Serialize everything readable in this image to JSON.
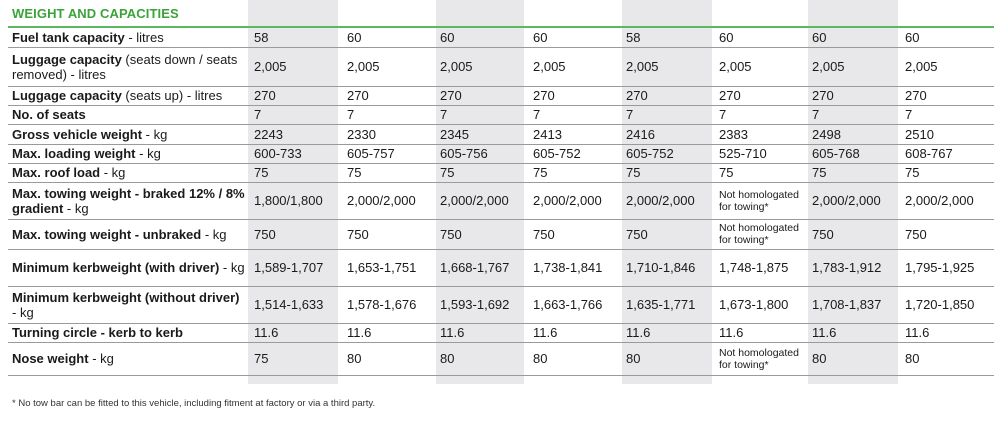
{
  "section_title": "WEIGHT AND CAPACITIES",
  "rows": [
    {
      "label": "Fuel tank capacity",
      "unit": " - litres",
      "values": [
        "58",
        "60",
        "60",
        "60",
        "58",
        "60",
        "60",
        "60"
      ]
    },
    {
      "label": "Luggage capacity",
      "unit": " (seats down / seats removed) - litres",
      "values": [
        "2,005",
        "2,005",
        "2,005",
        "2,005",
        "2,005",
        "2,005",
        "2,005",
        "2,005"
      ]
    },
    {
      "label": "Luggage capacity",
      "unit": " (seats up) - litres",
      "values": [
        "270",
        "270",
        "270",
        "270",
        "270",
        "270",
        "270",
        "270"
      ]
    },
    {
      "label": "No. of seats",
      "unit": "",
      "values": [
        "7",
        "7",
        "7",
        "7",
        "7",
        "7",
        "7",
        "7"
      ]
    },
    {
      "label": "Gross vehicle weight",
      "unit": " - kg",
      "values": [
        "2243",
        "2330",
        "2345",
        "2413",
        "2416",
        "2383",
        "2498",
        "2510"
      ]
    },
    {
      "label": "Max. loading weight",
      "unit": " - kg",
      "values": [
        "600-733",
        "605-757",
        "605-756",
        "605-752",
        "605-752",
        "525-710",
        "605-768",
        "608-767"
      ]
    },
    {
      "label": "Max. roof load",
      "unit": " - kg",
      "values": [
        "75",
        "75",
        "75",
        "75",
        "75",
        "75",
        "75",
        "75"
      ]
    },
    {
      "label": "Max. towing weight - braked 12% / 8% gradient",
      "unit": " - kg",
      "values": [
        "1,800/1,800",
        "2,000/2,000",
        "2,000/2,000",
        "2,000/2,000",
        "2,000/2,000",
        "Not homologated for towing*",
        "2,000/2,000",
        "2,000/2,000"
      ]
    },
    {
      "label": "Max. towing weight - unbraked",
      "unit": " - kg",
      "values": [
        "750",
        "750",
        "750",
        "750",
        "750",
        "Not homologated for towing*",
        "750",
        "750"
      ]
    },
    {
      "label": "Minimum kerbweight (with driver)",
      "unit": " - kg",
      "values": [
        "1,589-1,707",
        "1,653-1,751",
        "1,668-1,767",
        "1,738-1,841",
        "1,710-1,846",
        "1,748-1,875",
        "1,783-1,912",
        "1,795-1,925"
      ]
    },
    {
      "label": "Minimum kerbweight (without driver)",
      "unit": " - kg",
      "values": [
        "1,514-1,633",
        "1,578-1,676",
        "1,593-1,692",
        "1,663-1,766",
        "1,635-1,771",
        "1,673-1,800",
        "1,708-1,837",
        "1,720-1,850"
      ]
    },
    {
      "label": "Turning circle - kerb to kerb",
      "unit": "",
      "values": [
        "11.6",
        "11.6",
        "11.6",
        "11.6",
        "11.6",
        "11.6",
        "11.6",
        "11.6"
      ]
    },
    {
      "label": "Nose weight",
      "unit": " - kg",
      "values": [
        "75",
        "80",
        "80",
        "80",
        "80",
        "Not homologated for towing*",
        "80",
        "80"
      ]
    }
  ],
  "footnote": "* No tow bar can be fitted to this vehicle, including fitment at factory or via a third party."
}
